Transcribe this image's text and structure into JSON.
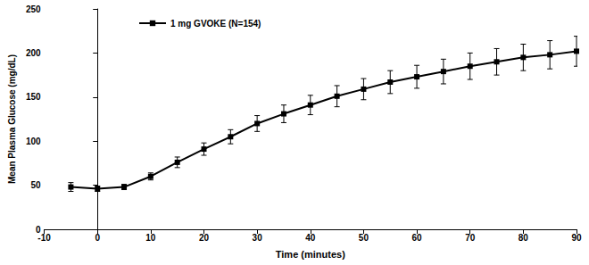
{
  "chart_data": {
    "type": "line",
    "x_label": "Time (minutes)",
    "y_label": "Mean Plasma Glucose (mg/dL)",
    "x": [
      -5,
      0,
      5,
      10,
      15,
      20,
      25,
      30,
      35,
      40,
      45,
      50,
      55,
      60,
      65,
      70,
      75,
      80,
      85,
      90
    ],
    "series": [
      {
        "name": "1 mg GVOKE (N=154)",
        "color": "#000000",
        "marker": "square",
        "line_style": "solid",
        "values": [
          48,
          46,
          48,
          60,
          76,
          91,
          105,
          120,
          131,
          141,
          151,
          159,
          167,
          173,
          179,
          185,
          190,
          195,
          198,
          202
        ],
        "errors": [
          5,
          3,
          3,
          4,
          6,
          7,
          8,
          9,
          10,
          11,
          12,
          12,
          13,
          13,
          14,
          15,
          15,
          15,
          16,
          17
        ]
      }
    ],
    "xlim": [
      -10,
      90
    ],
    "xticks": [
      -10,
      0,
      10,
      20,
      30,
      40,
      50,
      60,
      70,
      80,
      90
    ],
    "ylim": [
      0,
      250
    ],
    "yticks": [
      0,
      50,
      100,
      150,
      200,
      250
    ],
    "grid": false,
    "legend": "upper left"
  }
}
